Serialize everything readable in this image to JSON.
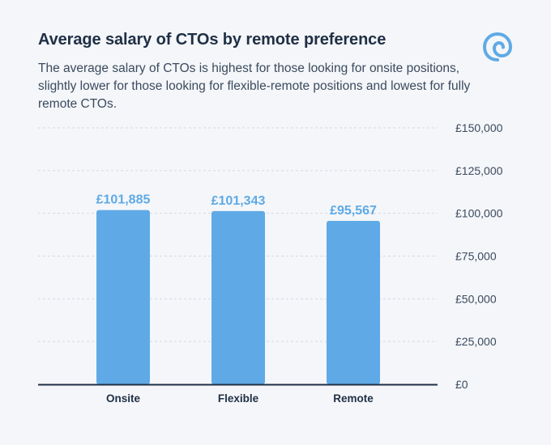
{
  "title": "Average salary of CTOs by remote preference",
  "subtitle": "The average salary of CTOs is highest for those looking for onsite positions, slightly lower for those looking for flexible-remote positions and lowest for fully remote CTOs.",
  "logo_icon": "swirl-logo-icon",
  "colors": {
    "bar": "#5faae6",
    "label": "#5faae6",
    "axis": "#1f2f45",
    "grid": "#d3dae3"
  },
  "chart_data": {
    "type": "bar",
    "title": "Average salary of CTOs by remote preference",
    "categories": [
      "Onsite",
      "Flexible",
      "Remote"
    ],
    "values": [
      101885,
      101343,
      95567
    ],
    "data_labels": [
      "£101,885",
      "£101,343",
      "£95,567"
    ],
    "ylim": [
      0,
      150000
    ],
    "yticks": [
      0,
      25000,
      50000,
      75000,
      100000,
      125000,
      150000
    ],
    "ytick_labels": [
      "£0",
      "£25,000",
      "£50,000",
      "£75,000",
      "£100,000",
      "£125,000",
      "£150,000"
    ],
    "y_axis_side": "right",
    "grid": true,
    "grid_style": "dashed",
    "legend": false
  }
}
